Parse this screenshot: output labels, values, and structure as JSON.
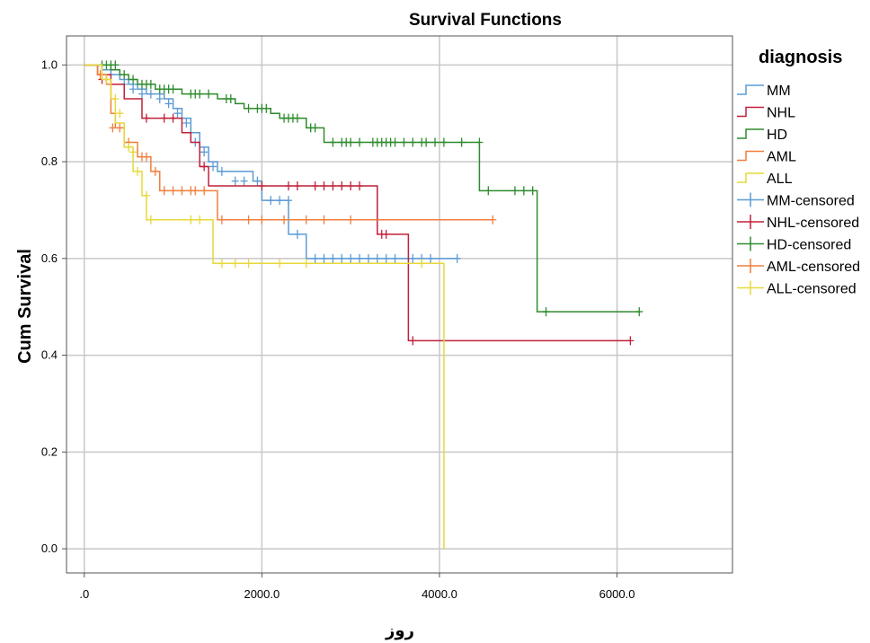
{
  "chart_data": {
    "type": "line",
    "title": "Survival Functions",
    "xlabel": "روز",
    "ylabel": "Cum Survival",
    "xlim": [
      -200,
      7300
    ],
    "ylim": [
      -0.05,
      1.06
    ],
    "x_ticks": [
      {
        "value": 0,
        "label": ".0"
      },
      {
        "value": 2000,
        "label": "2000.0"
      },
      {
        "value": 4000,
        "label": "4000.0"
      },
      {
        "value": 6000,
        "label": "6000.0"
      }
    ],
    "y_ticks": [
      {
        "value": 0,
        "label": "0.0"
      },
      {
        "value": 0.2,
        "label": "0.2"
      },
      {
        "value": 0.4,
        "label": "0.4"
      },
      {
        "value": 0.6,
        "label": "0.6"
      },
      {
        "value": 0.8,
        "label": "0.8"
      },
      {
        "value": 1.0,
        "label": "1.0"
      }
    ],
    "grid": true,
    "legend_title": "diagnosis",
    "legend_position": "right",
    "legend": [
      {
        "label": "MM",
        "kind": "step",
        "color": "#5b9bd5"
      },
      {
        "label": "NHL",
        "kind": "step",
        "color": "#c0203a"
      },
      {
        "label": "HD",
        "kind": "step",
        "color": "#2e8b2e"
      },
      {
        "label": "AML",
        "kind": "step",
        "color": "#f07f3c"
      },
      {
        "label": "ALL",
        "kind": "step",
        "color": "#e6d83a"
      },
      {
        "label": "MM-censored",
        "kind": "cross",
        "color": "#5b9bd5"
      },
      {
        "label": "NHL-censored",
        "kind": "cross",
        "color": "#c0203a"
      },
      {
        "label": "HD-censored",
        "kind": "cross",
        "color": "#2e8b2e"
      },
      {
        "label": "AML-censored",
        "kind": "cross",
        "color": "#f07f3c"
      },
      {
        "label": "ALL-censored",
        "kind": "cross",
        "color": "#e6d83a"
      }
    ],
    "series": [
      {
        "name": "MM",
        "color": "#5b9bd5",
        "steps": [
          [
            0,
            1.0
          ],
          [
            200,
            0.99
          ],
          [
            300,
            0.98
          ],
          [
            400,
            0.97
          ],
          [
            500,
            0.96
          ],
          [
            600,
            0.95
          ],
          [
            700,
            0.94
          ],
          [
            900,
            0.93
          ],
          [
            1000,
            0.91
          ],
          [
            1100,
            0.89
          ],
          [
            1200,
            0.86
          ],
          [
            1300,
            0.83
          ],
          [
            1400,
            0.8
          ],
          [
            1500,
            0.78
          ],
          [
            1900,
            0.76
          ],
          [
            2000,
            0.72
          ],
          [
            2300,
            0.65
          ],
          [
            2500,
            0.6
          ],
          [
            4200,
            0.6
          ]
        ],
        "censored": [
          [
            450,
            0.96
          ],
          [
            550,
            0.95
          ],
          [
            650,
            0.94
          ],
          [
            750,
            0.94
          ],
          [
            850,
            0.93
          ],
          [
            950,
            0.92
          ],
          [
            1050,
            0.9
          ],
          [
            1150,
            0.88
          ],
          [
            1250,
            0.84
          ],
          [
            1350,
            0.82
          ],
          [
            1450,
            0.79
          ],
          [
            1550,
            0.78
          ],
          [
            1700,
            0.76
          ],
          [
            1800,
            0.76
          ],
          [
            1950,
            0.76
          ],
          [
            2100,
            0.72
          ],
          [
            2200,
            0.72
          ],
          [
            2300,
            0.72
          ],
          [
            2400,
            0.65
          ],
          [
            2600,
            0.6
          ],
          [
            2700,
            0.6
          ],
          [
            2800,
            0.6
          ],
          [
            2900,
            0.6
          ],
          [
            3000,
            0.6
          ],
          [
            3100,
            0.6
          ],
          [
            3200,
            0.6
          ],
          [
            3300,
            0.6
          ],
          [
            3400,
            0.6
          ],
          [
            3500,
            0.6
          ],
          [
            3700,
            0.6
          ],
          [
            3800,
            0.6
          ],
          [
            3900,
            0.6
          ],
          [
            4200,
            0.6
          ]
        ]
      },
      {
        "name": "NHL",
        "color": "#c0203a",
        "steps": [
          [
            0,
            1.0
          ],
          [
            150,
            0.98
          ],
          [
            300,
            0.96
          ],
          [
            450,
            0.93
          ],
          [
            650,
            0.89
          ],
          [
            1100,
            0.86
          ],
          [
            1200,
            0.84
          ],
          [
            1300,
            0.79
          ],
          [
            1400,
            0.75
          ],
          [
            3300,
            0.65
          ],
          [
            3650,
            0.43
          ],
          [
            6150,
            0.43
          ]
        ],
        "censored": [
          [
            200,
            0.97
          ],
          [
            700,
            0.89
          ],
          [
            900,
            0.89
          ],
          [
            1000,
            0.89
          ],
          [
            1350,
            0.79
          ],
          [
            2000,
            0.75
          ],
          [
            2300,
            0.75
          ],
          [
            2400,
            0.75
          ],
          [
            2600,
            0.75
          ],
          [
            2700,
            0.75
          ],
          [
            2800,
            0.75
          ],
          [
            2900,
            0.75
          ],
          [
            3000,
            0.75
          ],
          [
            3100,
            0.75
          ],
          [
            3350,
            0.65
          ],
          [
            3400,
            0.65
          ],
          [
            3700,
            0.43
          ],
          [
            6150,
            0.43
          ]
        ]
      },
      {
        "name": "HD",
        "color": "#2e8b2e",
        "steps": [
          [
            0,
            1.0
          ],
          [
            300,
            0.99
          ],
          [
            400,
            0.98
          ],
          [
            500,
            0.97
          ],
          [
            600,
            0.96
          ],
          [
            800,
            0.95
          ],
          [
            1100,
            0.94
          ],
          [
            1500,
            0.93
          ],
          [
            1700,
            0.92
          ],
          [
            1800,
            0.91
          ],
          [
            2100,
            0.9
          ],
          [
            2200,
            0.89
          ],
          [
            2500,
            0.87
          ],
          [
            2700,
            0.84
          ],
          [
            4450,
            0.74
          ],
          [
            5100,
            0.49
          ],
          [
            6250,
            0.49
          ]
        ],
        "censored": [
          [
            200,
            1.0
          ],
          [
            250,
            1.0
          ],
          [
            300,
            1.0
          ],
          [
            350,
            1.0
          ],
          [
            450,
            0.98
          ],
          [
            550,
            0.97
          ],
          [
            650,
            0.96
          ],
          [
            700,
            0.96
          ],
          [
            750,
            0.96
          ],
          [
            850,
            0.95
          ],
          [
            900,
            0.95
          ],
          [
            950,
            0.95
          ],
          [
            1000,
            0.95
          ],
          [
            1200,
            0.94
          ],
          [
            1250,
            0.94
          ],
          [
            1300,
            0.94
          ],
          [
            1400,
            0.94
          ],
          [
            1600,
            0.93
          ],
          [
            1650,
            0.93
          ],
          [
            1850,
            0.91
          ],
          [
            1950,
            0.91
          ],
          [
            2000,
            0.91
          ],
          [
            2050,
            0.91
          ],
          [
            2250,
            0.89
          ],
          [
            2300,
            0.89
          ],
          [
            2350,
            0.89
          ],
          [
            2400,
            0.89
          ],
          [
            2550,
            0.87
          ],
          [
            2600,
            0.87
          ],
          [
            2800,
            0.84
          ],
          [
            2900,
            0.84
          ],
          [
            2950,
            0.84
          ],
          [
            3000,
            0.84
          ],
          [
            3100,
            0.84
          ],
          [
            3250,
            0.84
          ],
          [
            3300,
            0.84
          ],
          [
            3350,
            0.84
          ],
          [
            3400,
            0.84
          ],
          [
            3450,
            0.84
          ],
          [
            3500,
            0.84
          ],
          [
            3600,
            0.84
          ],
          [
            3700,
            0.84
          ],
          [
            3800,
            0.84
          ],
          [
            3850,
            0.84
          ],
          [
            3950,
            0.84
          ],
          [
            4050,
            0.84
          ],
          [
            4250,
            0.84
          ],
          [
            4450,
            0.84
          ],
          [
            4550,
            0.74
          ],
          [
            4850,
            0.74
          ],
          [
            4950,
            0.74
          ],
          [
            5050,
            0.74
          ],
          [
            5200,
            0.49
          ],
          [
            6250,
            0.49
          ]
        ]
      },
      {
        "name": "AML",
        "color": "#f07f3c",
        "steps": [
          [
            0,
            1.0
          ],
          [
            150,
            0.98
          ],
          [
            250,
            0.96
          ],
          [
            300,
            0.9
          ],
          [
            350,
            0.87
          ],
          [
            450,
            0.84
          ],
          [
            600,
            0.81
          ],
          [
            750,
            0.78
          ],
          [
            850,
            0.74
          ],
          [
            1500,
            0.68
          ],
          [
            4600,
            0.68
          ]
        ],
        "censored": [
          [
            180,
            0.98
          ],
          [
            320,
            0.87
          ],
          [
            400,
            0.87
          ],
          [
            500,
            0.84
          ],
          [
            650,
            0.81
          ],
          [
            700,
            0.81
          ],
          [
            800,
            0.78
          ],
          [
            900,
            0.74
          ],
          [
            1000,
            0.74
          ],
          [
            1100,
            0.74
          ],
          [
            1200,
            0.74
          ],
          [
            1250,
            0.74
          ],
          [
            1350,
            0.74
          ],
          [
            1550,
            0.68
          ],
          [
            1850,
            0.68
          ],
          [
            2000,
            0.68
          ],
          [
            2250,
            0.68
          ],
          [
            2500,
            0.68
          ],
          [
            2700,
            0.68
          ],
          [
            3000,
            0.68
          ],
          [
            4600,
            0.68
          ]
        ]
      },
      {
        "name": "ALL",
        "color": "#e6d83a",
        "steps": [
          [
            0,
            1.0
          ],
          [
            200,
            0.97
          ],
          [
            300,
            0.93
          ],
          [
            350,
            0.88
          ],
          [
            450,
            0.83
          ],
          [
            550,
            0.78
          ],
          [
            650,
            0.73
          ],
          [
            700,
            0.68
          ],
          [
            1450,
            0.59
          ],
          [
            4050,
            0.59
          ],
          [
            4050,
            0.0
          ]
        ],
        "censored": [
          [
            250,
            0.97
          ],
          [
            350,
            0.93
          ],
          [
            400,
            0.9
          ],
          [
            500,
            0.83
          ],
          [
            550,
            0.82
          ],
          [
            600,
            0.78
          ],
          [
            700,
            0.73
          ],
          [
            750,
            0.68
          ],
          [
            1200,
            0.68
          ],
          [
            1300,
            0.68
          ],
          [
            1550,
            0.59
          ],
          [
            1700,
            0.59
          ],
          [
            1850,
            0.59
          ],
          [
            2200,
            0.59
          ],
          [
            2500,
            0.59
          ],
          [
            3800,
            0.59
          ]
        ]
      }
    ]
  }
}
